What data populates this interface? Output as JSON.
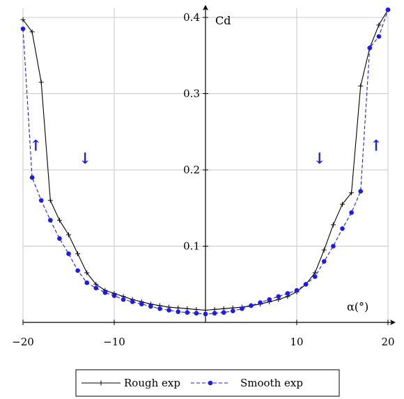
{
  "chart_data": {
    "type": "line",
    "title": "",
    "xlabel": "α(°)",
    "ylabel": "Cd",
    "xlim": [
      -20,
      20
    ],
    "ylim": [
      0,
      0.4
    ],
    "x_ticks": [
      -20,
      -10,
      10,
      20
    ],
    "x_tick_labels": [
      "−20",
      "−10",
      "10",
      "20"
    ],
    "y_ticks": [
      0.1,
      0.2,
      0.3,
      0.4
    ],
    "y_tick_labels": [
      "0.1",
      "0.2",
      "0.3",
      "0.4"
    ],
    "grid": true,
    "legend_position": "bottom-center",
    "series": [
      {
        "name": "Rough exp",
        "color": "#000000",
        "marker": "plus",
        "line_style": "solid",
        "x": [
          -20.0,
          -19.0,
          -18.0,
          -17.0,
          -16.0,
          -15.0,
          -14.0,
          -13.0,
          -12.0,
          -11.0,
          -10.0,
          -9.0,
          -8.0,
          -7.0,
          -6.0,
          -5.0,
          -4.0,
          -3.0,
          -2.0,
          -1.0,
          0.0,
          1.0,
          2.0,
          3.0,
          4.0,
          5.0,
          6.0,
          7.0,
          8.0,
          9.0,
          10.0,
          11.0,
          12.0,
          13.0,
          14.0,
          15.0,
          16.0,
          17.0,
          18.0,
          19.0,
          20.0
        ],
        "y": [
          0.397,
          0.381,
          0.315,
          0.16,
          0.134,
          0.115,
          0.09,
          0.065,
          0.05,
          0.042,
          0.038,
          0.034,
          0.03,
          0.027,
          0.024,
          0.022,
          0.02,
          0.019,
          0.018,
          0.017,
          0.016,
          0.017,
          0.018,
          0.019,
          0.02,
          0.022,
          0.024,
          0.027,
          0.03,
          0.034,
          0.04,
          0.05,
          0.065,
          0.095,
          0.128,
          0.155,
          0.17,
          0.31,
          0.36,
          0.39,
          0.41
        ]
      },
      {
        "name": "Smooth exp",
        "color": "#1a1aff",
        "marker": "dot",
        "line_style": "dashed",
        "x": [
          -20.0,
          -19.0,
          -18.0,
          -17.0,
          -16.0,
          -15.0,
          -14.0,
          -13.0,
          -12.0,
          -11.0,
          -10.0,
          -9.0,
          -8.0,
          -7.0,
          -6.0,
          -5.0,
          -4.0,
          -3.0,
          -2.0,
          -1.0,
          0.0,
          1.0,
          2.0,
          3.0,
          4.0,
          5.0,
          6.0,
          7.0,
          8.0,
          9.0,
          10.0,
          11.0,
          12.0,
          13.0,
          14.0,
          15.0,
          16.0,
          17.0,
          18.0,
          19.0,
          20.0
        ],
        "y": [
          0.385,
          0.19,
          0.16,
          0.134,
          0.11,
          0.09,
          0.068,
          0.052,
          0.045,
          0.039,
          0.035,
          0.03,
          0.027,
          0.024,
          0.021,
          0.018,
          0.016,
          0.014,
          0.013,
          0.012,
          0.011,
          0.012,
          0.013,
          0.015,
          0.018,
          0.022,
          0.026,
          0.03,
          0.034,
          0.038,
          0.042,
          0.05,
          0.06,
          0.08,
          0.1,
          0.123,
          0.144,
          0.172,
          0.36,
          0.375,
          0.41
        ]
      }
    ],
    "annotations": [
      {
        "text": "↑",
        "color": "#1a1aff",
        "x": -18.6,
        "y": 0.225
      },
      {
        "text": "↓",
        "color": "#1a1aff",
        "x": -13.2,
        "y": 0.208
      },
      {
        "text": "↓",
        "color": "#1a1aff",
        "x": 12.5,
        "y": 0.208
      },
      {
        "text": "↑",
        "color": "#1a1aff",
        "x": 18.7,
        "y": 0.225
      }
    ]
  },
  "legend": {
    "entries": [
      {
        "label": "Rough exp",
        "color": "#000000",
        "marker": "plus",
        "line_style": "solid"
      },
      {
        "label": "Smooth exp",
        "color": "#1a1aff",
        "marker": "dot",
        "line_style": "dashed"
      }
    ]
  }
}
